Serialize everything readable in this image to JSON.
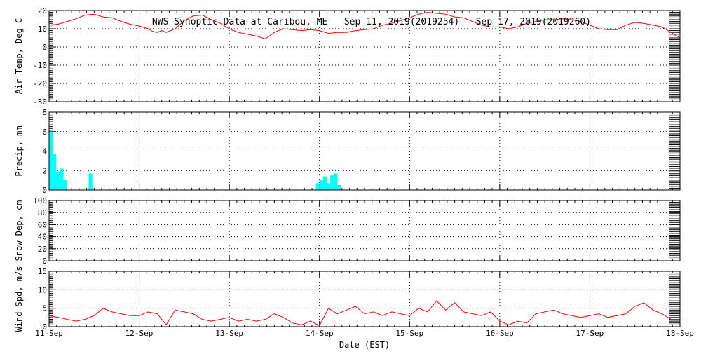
{
  "title": "NWS Synoptic Data at Caribou, ME   Sep 11, 2019(2019254) - Sep 17, 2019(2019260)",
  "xlabel": "Date (EST)",
  "x_ticks": [
    "11-Sep",
    "12-Sep",
    "13-Sep",
    "14-Sep",
    "15-Sep",
    "16-Sep",
    "17-Sep",
    "18-Sep"
  ],
  "colors": {
    "line": "#ff0000",
    "bars": "#00ffff",
    "axes": "#000000",
    "grid": "#000000",
    "background": "#ffffff"
  },
  "chart_data": [
    {
      "type": "line",
      "ylabel": "Air Temp, Deg C",
      "ylim": [
        -30,
        20
      ],
      "yticks": [
        -30,
        -20,
        -10,
        0,
        10,
        20
      ],
      "xlim": [
        0,
        7
      ],
      "grid": true,
      "series": [
        {
          "x": [
            0,
            0.1,
            0.2,
            0.3,
            0.4,
            0.5,
            0.6,
            0.7,
            0.8,
            0.9,
            1.0,
            1.1,
            1.15,
            1.2,
            1.25,
            1.3,
            1.4,
            1.5,
            1.6,
            1.7,
            1.8,
            1.9,
            2.0,
            2.1,
            2.2,
            2.3,
            2.4,
            2.5,
            2.6,
            2.7,
            2.8,
            2.9,
            3.0,
            3.1,
            3.2,
            3.3,
            3.4,
            3.5,
            3.6,
            3.7,
            3.8,
            3.9,
            4.0,
            4.1,
            4.2,
            4.3,
            4.4,
            4.5,
            4.6,
            4.7,
            4.8,
            4.9,
            5.0,
            5.1,
            5.2,
            5.3,
            5.4,
            5.5,
            5.6,
            5.7,
            5.8,
            5.9,
            6.0,
            6.1,
            6.2,
            6.3,
            6.4,
            6.5,
            6.6,
            6.7,
            6.8,
            6.9,
            7.0
          ],
          "y": [
            12,
            12.5,
            14,
            15.5,
            17.5,
            18,
            16.5,
            16,
            14,
            12.5,
            11.5,
            10,
            8.5,
            8,
            9,
            8,
            10,
            14.5,
            17,
            17.5,
            15,
            13,
            10,
            8,
            7,
            6,
            4.5,
            8,
            10,
            9.5,
            9,
            9.5,
            9,
            7.5,
            8,
            8,
            9,
            9.5,
            10,
            12,
            13,
            14.5,
            16,
            18,
            19,
            18.5,
            18,
            16.5,
            16,
            14,
            12,
            11,
            11,
            10,
            11,
            13,
            14,
            15,
            15,
            15.5,
            15,
            14,
            12,
            10,
            9.5,
            9.5,
            12,
            13.5,
            13,
            12,
            11,
            8,
            5
          ]
        }
      ]
    },
    {
      "type": "bar",
      "ylabel": "Precip, mm",
      "ylim": [
        0,
        8
      ],
      "yticks": [
        0,
        2,
        4,
        6,
        8
      ],
      "xlim": [
        0,
        7
      ],
      "grid": true,
      "bar_width_days": 0.04,
      "series": [
        {
          "x": [
            0.02,
            0.06,
            0.1,
            0.14,
            0.18,
            0.46,
            2.98,
            3.02,
            3.06,
            3.1,
            3.14,
            3.18,
            3.22,
            4.9
          ],
          "values": [
            6.0,
            3.7,
            1.8,
            2.2,
            1.0,
            1.7,
            0.7,
            1.0,
            1.4,
            0.7,
            1.5,
            1.7,
            0.5,
            0.1
          ]
        }
      ]
    },
    {
      "type": "line",
      "ylabel": "Snow Dep, cm",
      "ylim": [
        0,
        100
      ],
      "yticks": [
        0,
        20,
        40,
        60,
        80,
        100
      ],
      "xlim": [
        0,
        7
      ],
      "grid": true,
      "series": []
    },
    {
      "type": "line",
      "ylabel": "Wind Spd, m/s",
      "ylim": [
        0,
        15
      ],
      "yticks": [
        0,
        5,
        10,
        15
      ],
      "xlim": [
        0,
        7
      ],
      "grid": true,
      "series": [
        {
          "x": [
            0,
            0.1,
            0.2,
            0.3,
            0.4,
            0.5,
            0.6,
            0.7,
            0.8,
            0.9,
            1.0,
            1.1,
            1.2,
            1.3,
            1.4,
            1.5,
            1.6,
            1.7,
            1.8,
            1.9,
            2.0,
            2.1,
            2.2,
            2.3,
            2.4,
            2.5,
            2.6,
            2.7,
            2.8,
            2.9,
            3.0,
            3.1,
            3.2,
            3.3,
            3.4,
            3.5,
            3.6,
            3.7,
            3.8,
            3.9,
            4.0,
            4.1,
            4.2,
            4.3,
            4.4,
            4.5,
            4.6,
            4.7,
            4.8,
            4.9,
            5.0,
            5.1,
            5.2,
            5.3,
            5.4,
            5.5,
            5.6,
            5.7,
            5.8,
            5.9,
            6.0,
            6.1,
            6.2,
            6.3,
            6.4,
            6.5,
            6.6,
            6.7,
            6.8,
            6.9,
            7.0
          ],
          "y": [
            3,
            2.5,
            2,
            1.5,
            2,
            3,
            5,
            4,
            3.5,
            3,
            3,
            4,
            3.5,
            0.5,
            4.5,
            4,
            3.5,
            2,
            1.5,
            2,
            2.5,
            1.5,
            2,
            1.5,
            2,
            3.5,
            2.5,
            1,
            0.5,
            1.5,
            0.3,
            5,
            3.5,
            4.5,
            5.5,
            3.5,
            4,
            3,
            4,
            3.5,
            3,
            5,
            4,
            7,
            4.5,
            6.5,
            4,
            3.5,
            3,
            4,
            1.5,
            0.5,
            1.5,
            1,
            3.5,
            4,
            4.5,
            3.5,
            3,
            2.5,
            3,
            3.5,
            2.5,
            3,
            3.5,
            5.5,
            6.5,
            4.5,
            3.5,
            2,
            2
          ]
        }
      ]
    }
  ]
}
